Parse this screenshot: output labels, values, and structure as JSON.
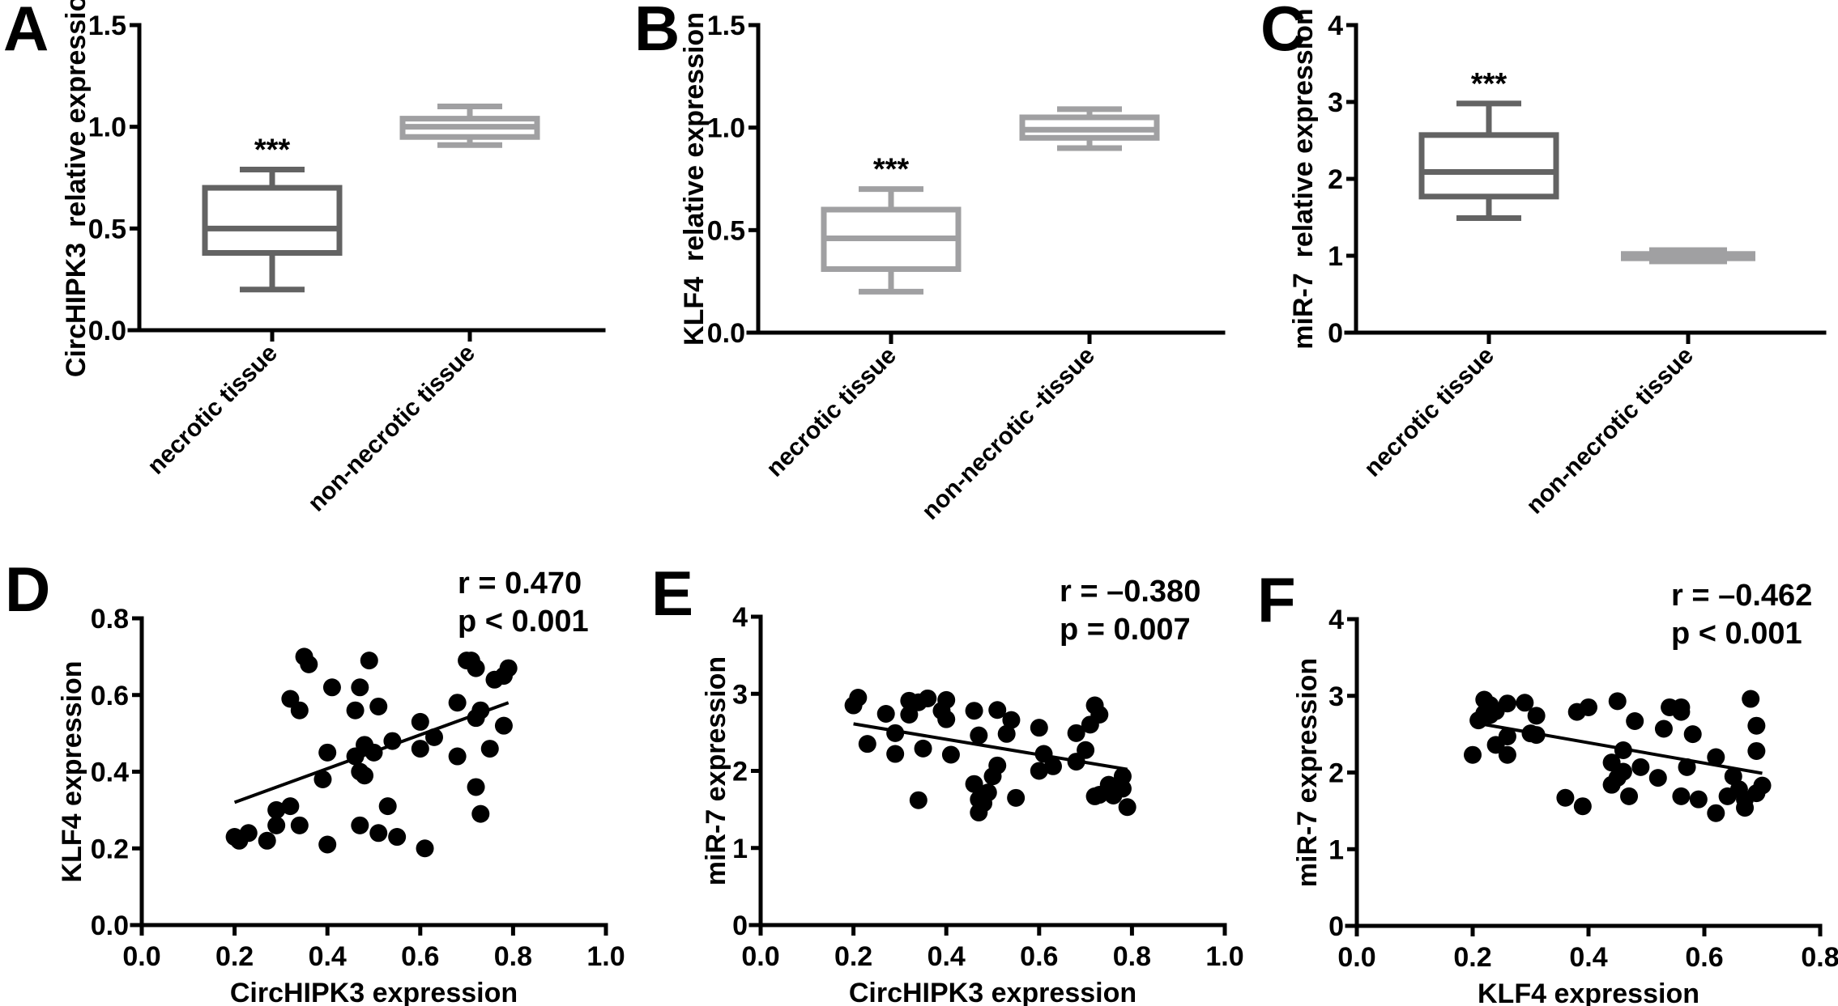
{
  "figure": {
    "panels": [
      "A",
      "B",
      "C",
      "D",
      "E",
      "F"
    ]
  },
  "chart_data": [
    {
      "panel": "A",
      "type": "box",
      "ylabel": "CircHIPK3  relative expression",
      "ylim": [
        0,
        1.5
      ],
      "yticks": [
        0.0,
        0.5,
        1.0,
        1.5
      ],
      "ytick_labels": [
        "0.0",
        "0.5",
        "1.0",
        "1.5"
      ],
      "categories": [
        "necrotic tissue",
        "non-necrotic tissue"
      ],
      "boxes": [
        {
          "min": 0.2,
          "q1": 0.38,
          "median": 0.5,
          "q3": 0.7,
          "max": 0.79,
          "color": "#636363",
          "annotation": "***"
        },
        {
          "min": 0.91,
          "q1": 0.95,
          "median": 1.0,
          "q3": 1.04,
          "max": 1.1,
          "color": "#a0a0a2",
          "annotation": ""
        }
      ]
    },
    {
      "panel": "B",
      "type": "box",
      "ylabel": "KLF4  relative expression",
      "ylim": [
        0,
        1.5
      ],
      "yticks": [
        0.0,
        0.5,
        1.0,
        1.5
      ],
      "ytick_labels": [
        "0.0",
        "0.5",
        "1.0",
        "1.5"
      ],
      "categories": [
        "necrotic tissue",
        "non-necrotic -tissue"
      ],
      "boxes": [
        {
          "min": 0.2,
          "q1": 0.31,
          "median": 0.46,
          "q3": 0.6,
          "max": 0.7,
          "color": "#a0a0a2",
          "annotation": "***"
        },
        {
          "min": 0.9,
          "q1": 0.95,
          "median": 0.99,
          "q3": 1.05,
          "max": 1.09,
          "color": "#a0a0a2",
          "annotation": ""
        }
      ]
    },
    {
      "panel": "C",
      "type": "box",
      "ylabel": "miR-7  relative expression",
      "ylim": [
        0,
        4
      ],
      "yticks": [
        0,
        1,
        2,
        3,
        4
      ],
      "ytick_labels": [
        "0",
        "1",
        "2",
        "3",
        "4"
      ],
      "categories": [
        "necrotic tissue",
        "non-necrotic tissue"
      ],
      "boxes": [
        {
          "min": 1.49,
          "q1": 1.77,
          "median": 2.09,
          "q3": 2.57,
          "max": 2.98,
          "color": "#636363",
          "annotation": "***"
        },
        {
          "min": 0.89,
          "q1": 0.93,
          "median": 1.0,
          "q3": 1.06,
          "max": 1.11,
          "color": "#a0a0a2",
          "annotation": "",
          "filled": true
        }
      ]
    },
    {
      "panel": "D",
      "type": "scatter",
      "xlabel": "CircHIPK3 expression",
      "ylabel": "KLF4 expression",
      "xlim": [
        0,
        1.0
      ],
      "ylim": [
        0,
        0.8
      ],
      "xticks": [
        0.0,
        0.2,
        0.4,
        0.6,
        0.8,
        1.0
      ],
      "xtick_labels": [
        "0.0",
        "0.2",
        "0.4",
        "0.6",
        "0.8",
        "1.0"
      ],
      "yticks": [
        0.0,
        0.2,
        0.4,
        0.6,
        0.8
      ],
      "ytick_labels": [
        "0.0",
        "0.2",
        "0.4",
        "0.6",
        "0.8"
      ],
      "stats": [
        "r = 0.470",
        "p < 0.001"
      ],
      "fit": [
        [
          0.2,
          0.32
        ],
        [
          0.79,
          0.58
        ]
      ],
      "points": [
        [
          0.2,
          0.23
        ],
        [
          0.21,
          0.22
        ],
        [
          0.23,
          0.24
        ],
        [
          0.27,
          0.22
        ],
        [
          0.29,
          0.26
        ],
        [
          0.29,
          0.3
        ],
        [
          0.32,
          0.31
        ],
        [
          0.34,
          0.26
        ],
        [
          0.32,
          0.59
        ],
        [
          0.34,
          0.56
        ],
        [
          0.35,
          0.7
        ],
        [
          0.36,
          0.68
        ],
        [
          0.39,
          0.38
        ],
        [
          0.4,
          0.45
        ],
        [
          0.4,
          0.21
        ],
        [
          0.41,
          0.62
        ],
        [
          0.46,
          0.56
        ],
        [
          0.46,
          0.44
        ],
        [
          0.47,
          0.62
        ],
        [
          0.47,
          0.4
        ],
        [
          0.48,
          0.47
        ],
        [
          0.48,
          0.39
        ],
        [
          0.47,
          0.26
        ],
        [
          0.49,
          0.69
        ],
        [
          0.5,
          0.45
        ],
        [
          0.51,
          0.57
        ],
        [
          0.51,
          0.24
        ],
        [
          0.53,
          0.31
        ],
        [
          0.54,
          0.48
        ],
        [
          0.55,
          0.23
        ],
        [
          0.6,
          0.53
        ],
        [
          0.6,
          0.46
        ],
        [
          0.61,
          0.2
        ],
        [
          0.63,
          0.49
        ],
        [
          0.68,
          0.58
        ],
        [
          0.68,
          0.44
        ],
        [
          0.7,
          0.69
        ],
        [
          0.71,
          0.69
        ],
        [
          0.72,
          0.67
        ],
        [
          0.72,
          0.54
        ],
        [
          0.73,
          0.56
        ],
        [
          0.72,
          0.36
        ],
        [
          0.73,
          0.29
        ],
        [
          0.75,
          0.46
        ],
        [
          0.76,
          0.64
        ],
        [
          0.78,
          0.52
        ],
        [
          0.78,
          0.65
        ],
        [
          0.79,
          0.67
        ]
      ]
    },
    {
      "panel": "E",
      "type": "scatter",
      "xlabel": "CircHIPK3 expression",
      "ylabel": "miR-7 expression",
      "xlim": [
        0,
        1.0
      ],
      "ylim": [
        0,
        4
      ],
      "xticks": [
        0.0,
        0.2,
        0.4,
        0.6,
        0.8,
        1.0
      ],
      "xtick_labels": [
        "0.0",
        "0.2",
        "0.4",
        "0.6",
        "0.8",
        "1.0"
      ],
      "yticks": [
        0,
        1,
        2,
        3,
        4
      ],
      "ytick_labels": [
        "0",
        "1",
        "2",
        "3",
        "4"
      ],
      "stats": [
        "r = –0.380",
        "p = 0.007"
      ],
      "fit": [
        [
          0.2,
          2.61
        ],
        [
          0.79,
          2.02
        ]
      ],
      "points": [
        [
          0.2,
          2.85
        ],
        [
          0.21,
          2.95
        ],
        [
          0.23,
          2.35
        ],
        [
          0.27,
          2.74
        ],
        [
          0.29,
          2.49
        ],
        [
          0.29,
          2.22
        ],
        [
          0.32,
          2.91
        ],
        [
          0.32,
          2.73
        ],
        [
          0.34,
          2.89
        ],
        [
          0.36,
          2.94
        ],
        [
          0.34,
          1.62
        ],
        [
          0.35,
          2.29
        ],
        [
          0.39,
          2.78
        ],
        [
          0.4,
          2.92
        ],
        [
          0.4,
          2.67
        ],
        [
          0.41,
          2.21
        ],
        [
          0.46,
          2.78
        ],
        [
          0.47,
          2.46
        ],
        [
          0.46,
          1.83
        ],
        [
          0.47,
          1.63
        ],
        [
          0.48,
          1.58
        ],
        [
          0.47,
          1.46
        ],
        [
          0.49,
          1.72
        ],
        [
          0.5,
          1.93
        ],
        [
          0.51,
          2.07
        ],
        [
          0.51,
          2.79
        ],
        [
          0.53,
          2.48
        ],
        [
          0.54,
          2.66
        ],
        [
          0.55,
          1.65
        ],
        [
          0.6,
          2.56
        ],
        [
          0.6,
          2.0
        ],
        [
          0.61,
          2.22
        ],
        [
          0.63,
          2.06
        ],
        [
          0.68,
          2.49
        ],
        [
          0.68,
          2.12
        ],
        [
          0.7,
          2.27
        ],
        [
          0.71,
          2.6
        ],
        [
          0.72,
          2.85
        ],
        [
          0.73,
          2.73
        ],
        [
          0.72,
          1.67
        ],
        [
          0.73,
          1.69
        ],
        [
          0.75,
          1.82
        ],
        [
          0.76,
          1.68
        ],
        [
          0.78,
          1.77
        ],
        [
          0.78,
          1.93
        ],
        [
          0.79,
          1.53
        ]
      ]
    },
    {
      "panel": "F",
      "type": "scatter",
      "xlabel": "KLF4 expression",
      "ylabel": "miR-7 expression",
      "xlim": [
        0,
        0.8
      ],
      "ylim": [
        0,
        4
      ],
      "xticks": [
        0.0,
        0.2,
        0.4,
        0.6,
        0.8
      ],
      "xtick_labels": [
        "0.0",
        "0.2",
        "0.4",
        "0.6",
        "0.8"
      ],
      "yticks": [
        0,
        1,
        2,
        3,
        4
      ],
      "ytick_labels": [
        "0",
        "1",
        "2",
        "3",
        "4"
      ],
      "stats": [
        "r = –0.462",
        "p < 0.001"
      ],
      "fit": [
        [
          0.21,
          2.64
        ],
        [
          0.7,
          1.99
        ]
      ],
      "points": [
        [
          0.2,
          2.23
        ],
        [
          0.21,
          2.68
        ],
        [
          0.22,
          2.95
        ],
        [
          0.22,
          2.77
        ],
        [
          0.23,
          2.88
        ],
        [
          0.23,
          2.75
        ],
        [
          0.24,
          2.8
        ],
        [
          0.24,
          2.36
        ],
        [
          0.26,
          2.9
        ],
        [
          0.26,
          2.47
        ],
        [
          0.26,
          2.23
        ],
        [
          0.29,
          2.91
        ],
        [
          0.3,
          2.51
        ],
        [
          0.31,
          2.74
        ],
        [
          0.31,
          2.49
        ],
        [
          0.36,
          1.67
        ],
        [
          0.38,
          2.79
        ],
        [
          0.4,
          2.85
        ],
        [
          0.39,
          1.56
        ],
        [
          0.44,
          2.13
        ],
        [
          0.44,
          1.84
        ],
        [
          0.45,
          2.93
        ],
        [
          0.45,
          1.93
        ],
        [
          0.46,
          2.29
        ],
        [
          0.46,
          2.01
        ],
        [
          0.47,
          1.69
        ],
        [
          0.48,
          2.67
        ],
        [
          0.49,
          2.07
        ],
        [
          0.52,
          1.93
        ],
        [
          0.53,
          2.57
        ],
        [
          0.54,
          2.85
        ],
        [
          0.56,
          2.85
        ],
        [
          0.56,
          2.79
        ],
        [
          0.56,
          1.69
        ],
        [
          0.57,
          2.07
        ],
        [
          0.58,
          2.5
        ],
        [
          0.59,
          1.65
        ],
        [
          0.62,
          2.2
        ],
        [
          0.62,
          1.47
        ],
        [
          0.64,
          1.69
        ],
        [
          0.65,
          1.95
        ],
        [
          0.66,
          1.78
        ],
        [
          0.67,
          1.65
        ],
        [
          0.67,
          1.54
        ],
        [
          0.68,
          2.96
        ],
        [
          0.69,
          2.61
        ],
        [
          0.69,
          2.28
        ],
        [
          0.69,
          1.73
        ],
        [
          0.7,
          1.83
        ]
      ]
    }
  ]
}
